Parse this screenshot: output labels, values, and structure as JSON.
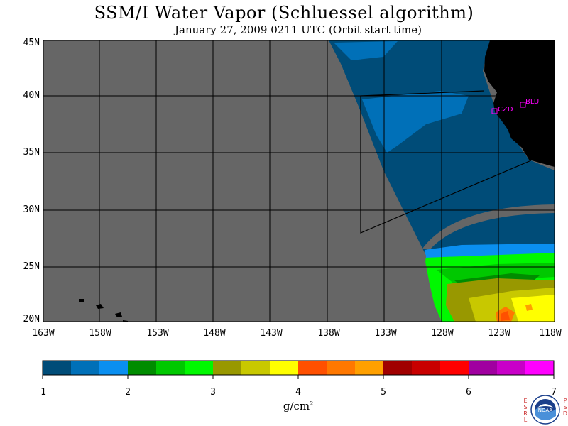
{
  "title": "SSM/I Water Vapor (Schluessel algorithm)",
  "subtitle": "January 27, 2009  0211 UTC  (Orbit start time)",
  "lat_labels": [
    "45N",
    "40N",
    "35N",
    "30N",
    "25N",
    "20N"
  ],
  "lon_labels": [
    "163W",
    "158W",
    "153W",
    "148W",
    "143W",
    "138W",
    "133W",
    "128W",
    "123W",
    "118W"
  ],
  "stations": [
    {
      "id": "CZD",
      "lat": 38.6,
      "lon": -123.2
    },
    {
      "id": "BLU",
      "lat": 39.2,
      "lon": -120.7
    }
  ],
  "colorbar": {
    "units": "g/cm",
    "units_superscript": "2",
    "ticks": [
      "1",
      "2",
      "3",
      "4",
      "5",
      "6",
      "7"
    ],
    "colors": [
      "#004c78",
      "#0070b8",
      "#0a8ff0",
      "#008c00",
      "#00c800",
      "#00f800",
      "#989800",
      "#c8c800",
      "#ffff00",
      "#ff5000",
      "#ff7800",
      "#ffa000",
      "#a00000",
      "#c80000",
      "#ff0000",
      "#a000a0",
      "#c800c8",
      "#ff00ff"
    ]
  },
  "map_colors": {
    "background": "#666666",
    "land": "#000000",
    "station_marker": "#ff00ff"
  },
  "logo": {
    "name": "NOAA",
    "left_letters": "ESRL",
    "right_letters": "PSD"
  }
}
